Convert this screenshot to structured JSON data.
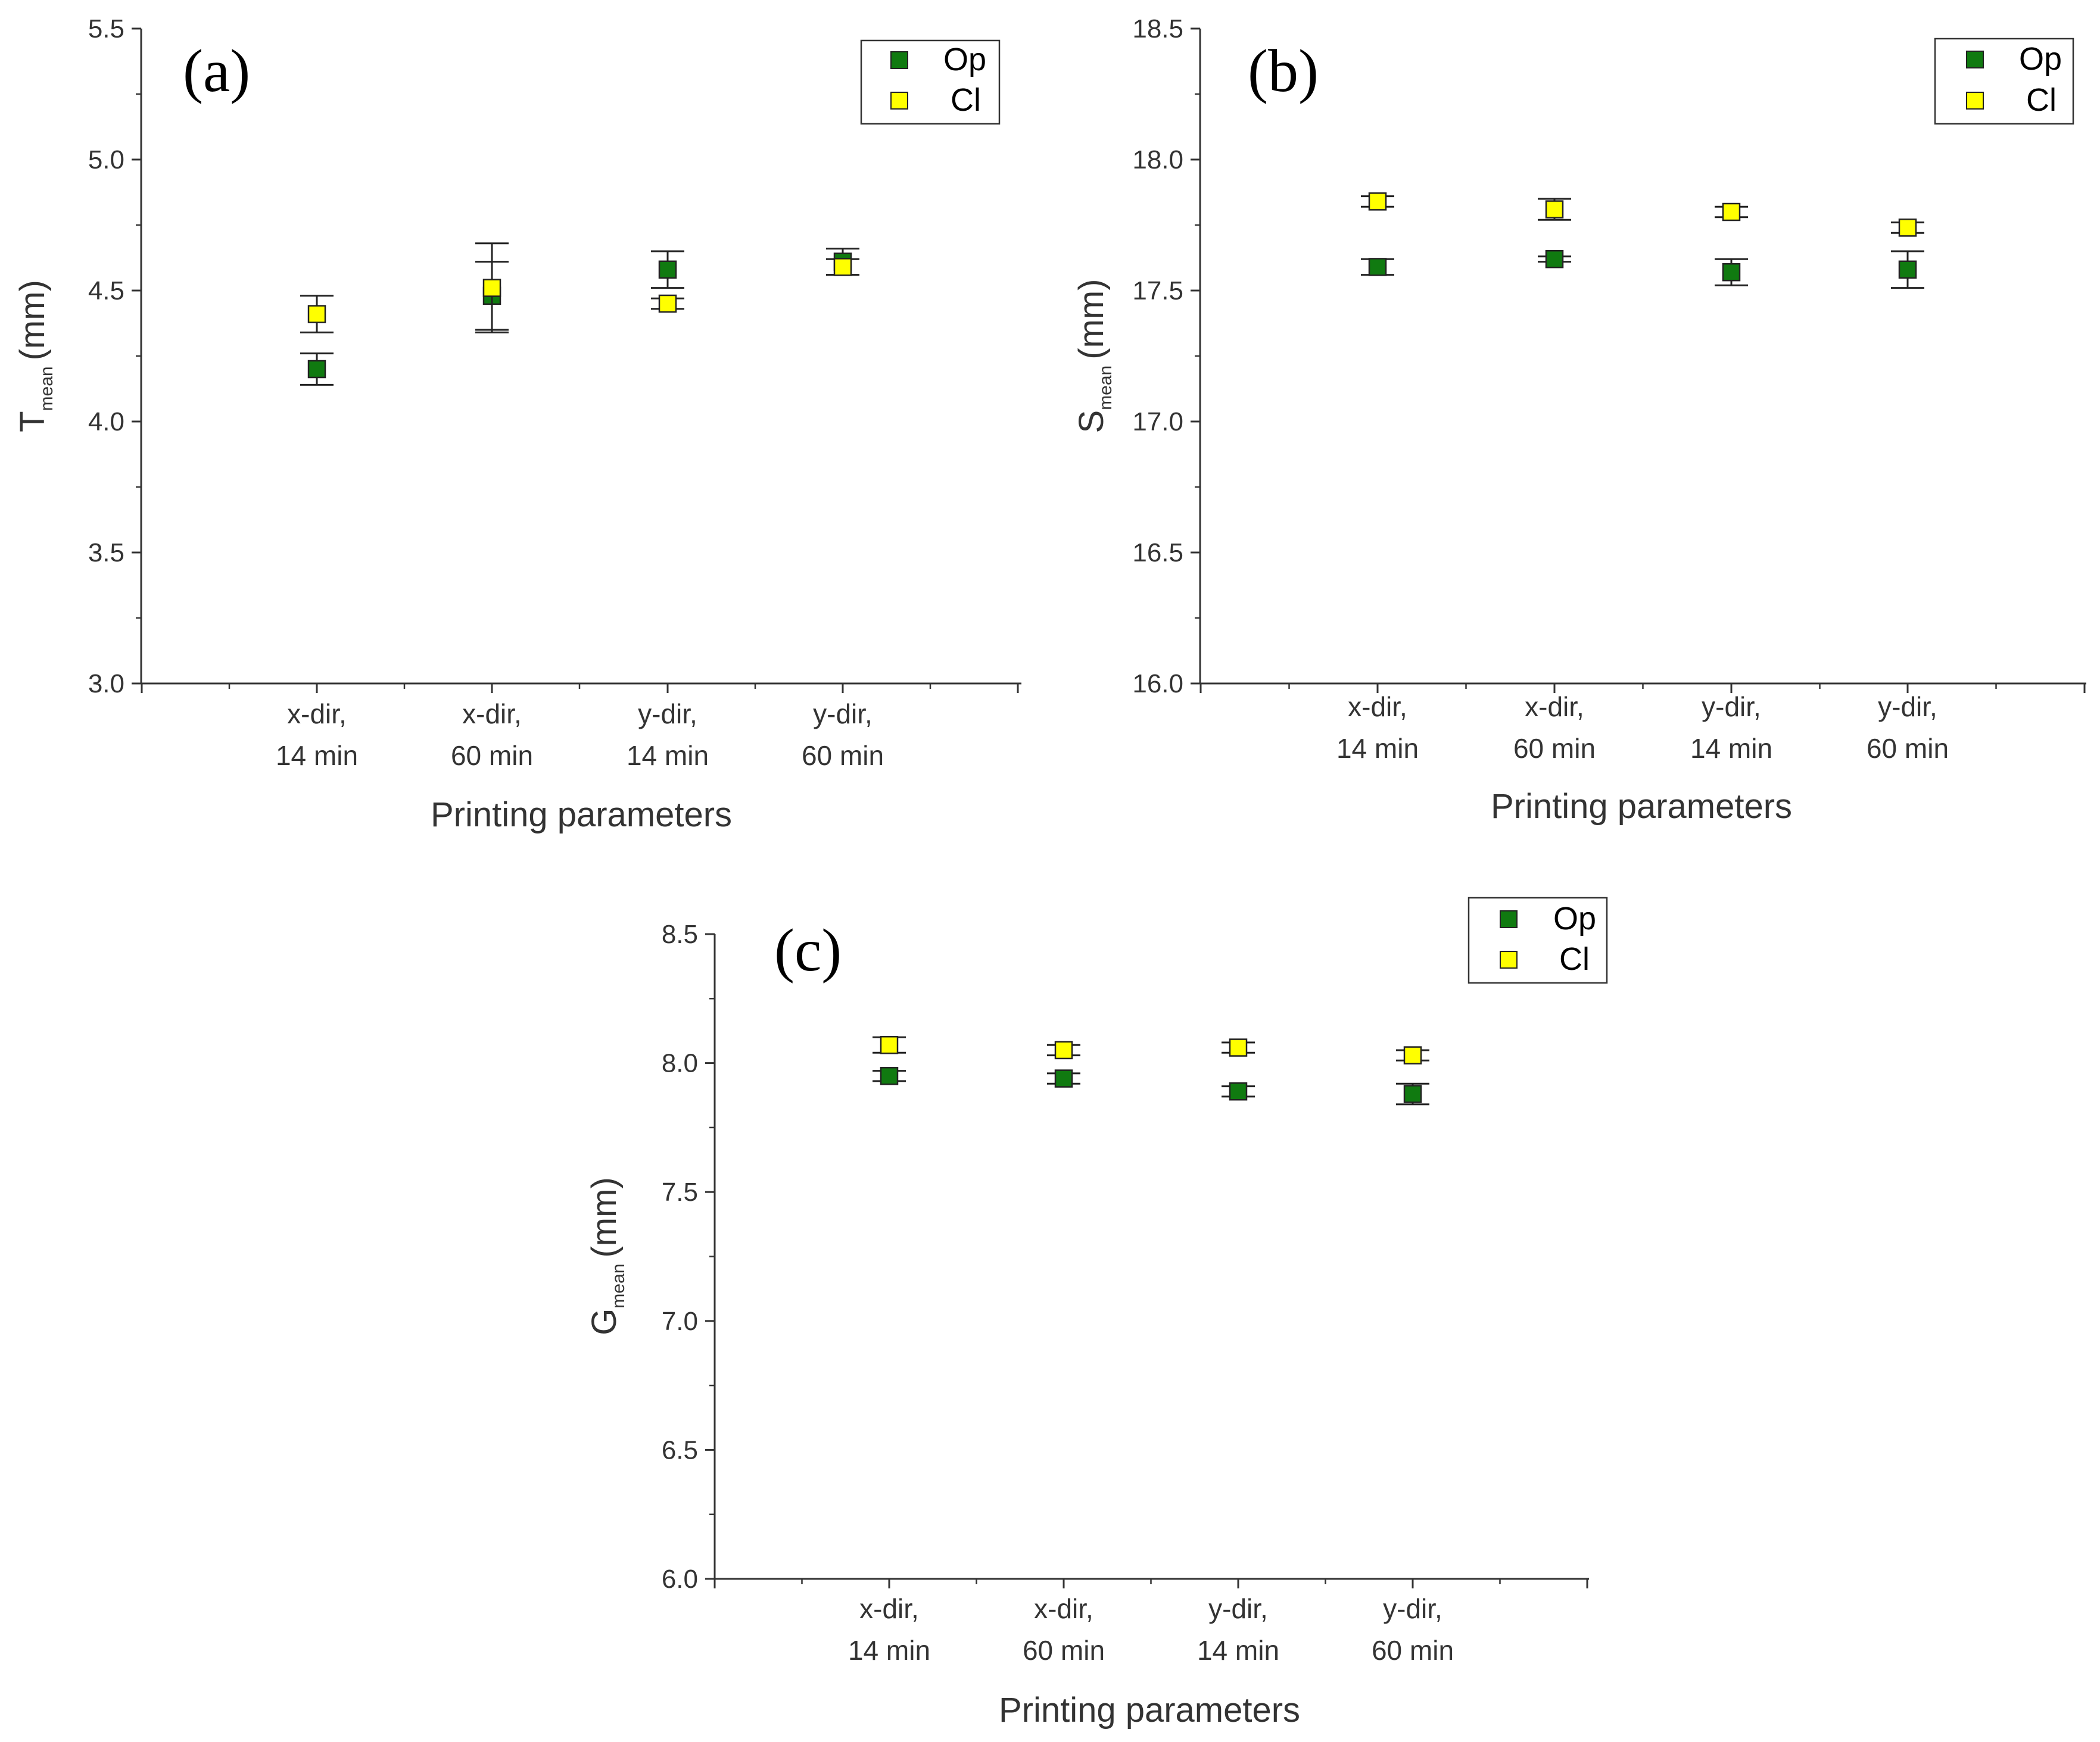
{
  "colors": {
    "op": "#107a10",
    "cl": "#ffff00",
    "axis": "#333333",
    "marker_edge": "#222222"
  },
  "legend": {
    "op": "Op",
    "cl": "Cl"
  },
  "chart_data": [
    {
      "type": "scatter",
      "panel_label": "(a)",
      "categories": [
        [
          "x-dir,",
          "14 min"
        ],
        [
          "x-dir,",
          "60 min"
        ],
        [
          "y-dir,",
          "14 min"
        ],
        [
          "y-dir,",
          "60 min"
        ]
      ],
      "xlabel": "Printing parameters",
      "ylabel": {
        "main": "T",
        "sub": "mean",
        "unit": "(mm)"
      },
      "ylim": [
        3.0,
        5.5
      ],
      "yticks": [
        3.0,
        3.5,
        4.0,
        4.5,
        5.0,
        5.5
      ],
      "ytick_labels": [
        "3.0",
        "3.5",
        "4.0",
        "4.5",
        "5.0",
        "5.5"
      ],
      "series": [
        {
          "name": "Op",
          "values": [
            4.2,
            4.48,
            4.58,
            4.61
          ],
          "errors": [
            0.06,
            0.13,
            0.07,
            0.05
          ]
        },
        {
          "name": "Cl",
          "values": [
            4.41,
            4.51,
            4.45,
            4.59
          ],
          "errors": [
            0.07,
            0.17,
            0.02,
            0.03
          ]
        }
      ],
      "legend_position": "top-right",
      "grid": false
    },
    {
      "type": "scatter",
      "panel_label": "(b)",
      "categories": [
        [
          "x-dir,",
          "14 min"
        ],
        [
          "x-dir,",
          "60 min"
        ],
        [
          "y-dir,",
          "14 min"
        ],
        [
          "y-dir,",
          "60 min"
        ]
      ],
      "xlabel": "Printing parameters",
      "ylabel": {
        "main": "S",
        "sub": "mean",
        "unit": "(mm)"
      },
      "ylim": [
        16.0,
        18.5
      ],
      "yticks": [
        16.0,
        16.5,
        17.0,
        17.5,
        18.0,
        18.5
      ],
      "ytick_labels": [
        "16.0",
        "16.5",
        "17.0",
        "17.5",
        "18.0",
        "18.5"
      ],
      "series": [
        {
          "name": "Op",
          "values": [
            17.59,
            17.62,
            17.57,
            17.58
          ],
          "errors": [
            0.03,
            0.01,
            0.05,
            0.07
          ]
        },
        {
          "name": "Cl",
          "values": [
            17.84,
            17.81,
            17.8,
            17.74
          ],
          "errors": [
            0.02,
            0.04,
            0.02,
            0.02
          ]
        }
      ],
      "legend_position": "top-right",
      "grid": false
    },
    {
      "type": "scatter",
      "panel_label": "(c)",
      "categories": [
        [
          "x-dir,",
          "14 min"
        ],
        [
          "x-dir,",
          "60 min"
        ],
        [
          "y-dir,",
          "14 min"
        ],
        [
          "y-dir,",
          "60 min"
        ]
      ],
      "xlabel": "Printing parameters",
      "ylabel": {
        "main": "G",
        "sub": "mean",
        "unit": "(mm)"
      },
      "ylim": [
        6.0,
        8.5
      ],
      "yticks": [
        6.0,
        6.5,
        7.0,
        7.5,
        8.0,
        8.5
      ],
      "ytick_labels": [
        "6.0",
        "6.5",
        "7.0",
        "7.5",
        "8.0",
        "8.5"
      ],
      "series": [
        {
          "name": "Op",
          "values": [
            7.95,
            7.94,
            7.89,
            7.88
          ],
          "errors": [
            0.02,
            0.02,
            0.02,
            0.04
          ]
        },
        {
          "name": "Cl",
          "values": [
            8.07,
            8.05,
            8.06,
            8.03
          ],
          "errors": [
            0.03,
            0.02,
            0.02,
            0.02
          ]
        }
      ],
      "legend_position": "top-right",
      "grid": false
    }
  ]
}
